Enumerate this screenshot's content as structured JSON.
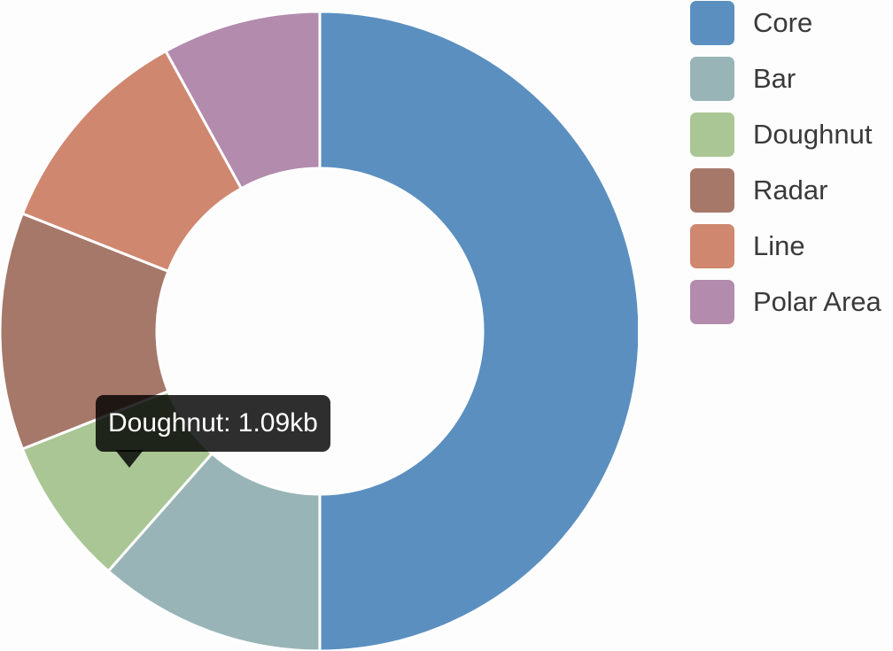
{
  "chart_data": {
    "type": "pie",
    "variant": "doughnut",
    "legend_position": "right",
    "categories": [
      "Core",
      "Bar",
      "Doughnut",
      "Radar",
      "Line",
      "Polar Area"
    ],
    "values": [
      50.0,
      11.5,
      7.5,
      12.0,
      11.0,
      8.0
    ],
    "colors": [
      "#5b8fc0",
      "#98b4b6",
      "#a9c694",
      "#a6786a",
      "#d0876f",
      "#b28bad"
    ],
    "tooltip": {
      "text": "Doughnut: 1.09kb",
      "category": "Doughnut"
    }
  }
}
